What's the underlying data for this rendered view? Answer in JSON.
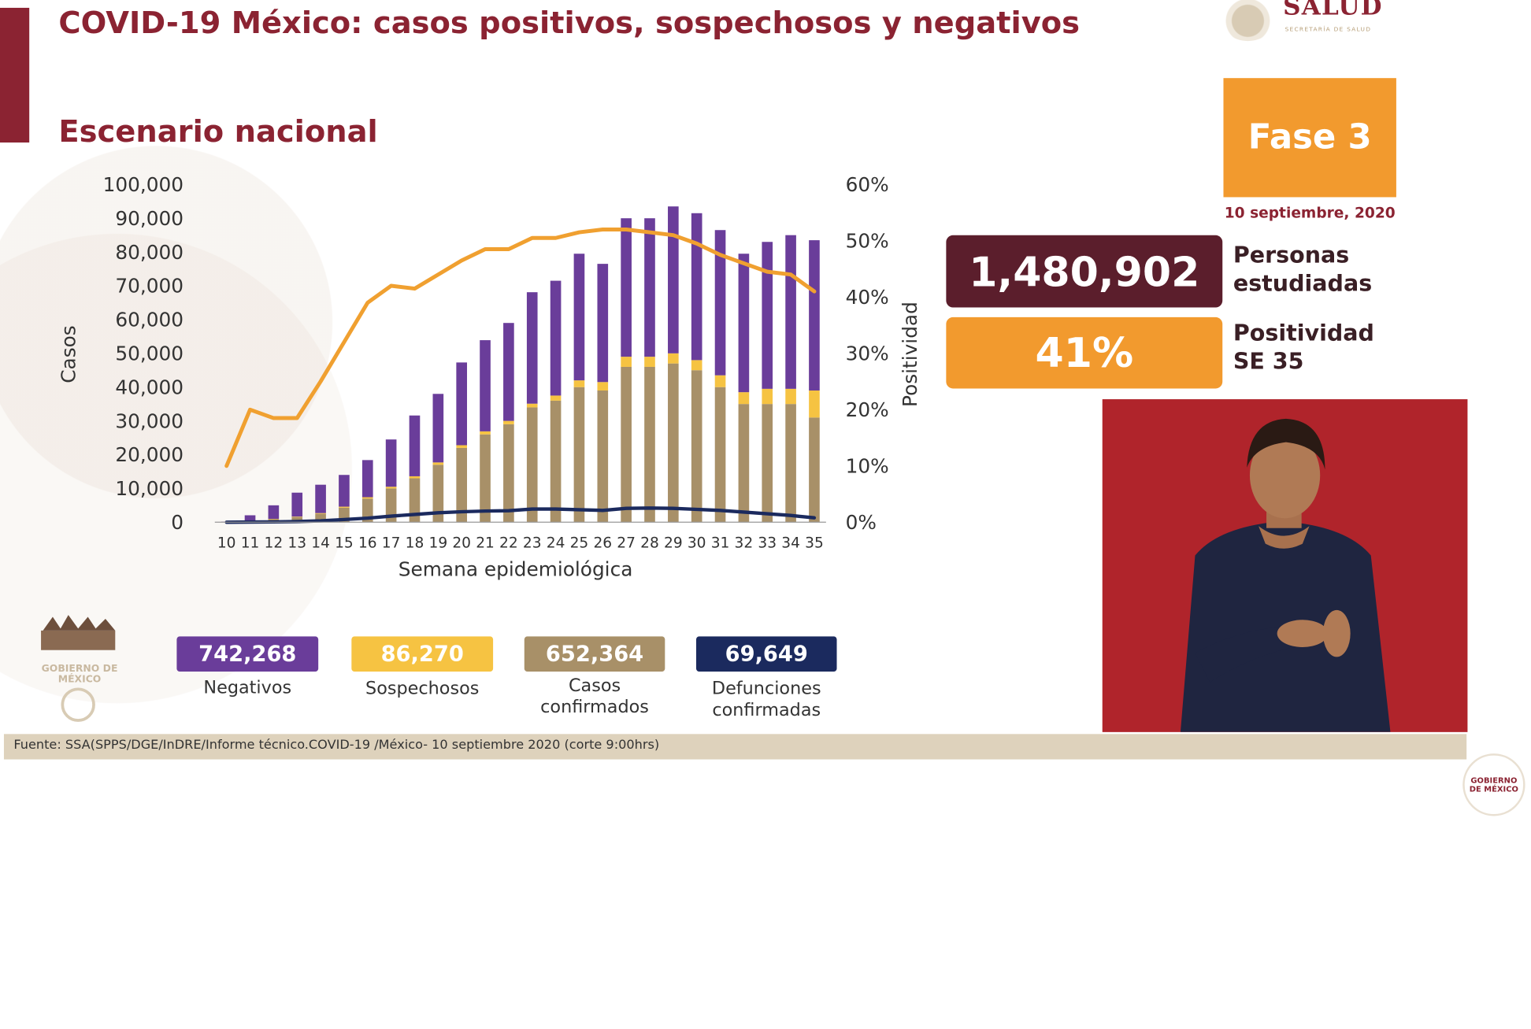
{
  "header": {
    "title": "COVID-19 México: casos positivos, sospechosos y negativos",
    "subtitle": "Escenario nacional",
    "logo_word": "SALUD",
    "logo_sub": "SECRETARÍA DE SALUD"
  },
  "phase": {
    "label": "Fase 3",
    "date": "10 septiembre, 2020"
  },
  "stats": [
    {
      "value": "1,480,902",
      "label_line1": "Personas",
      "label_line2": "estudiadas",
      "color": "#5b1e2c"
    },
    {
      "value": "41%",
      "label_line1": "Positividad",
      "label_line2": "SE 35",
      "color": "#f29a2e"
    }
  ],
  "totals": [
    {
      "value": "742,268",
      "label_line1": "Negativos",
      "label_line2": "",
      "color": "#6a3d9a"
    },
    {
      "value": "86,270",
      "label_line1": "Sospechosos",
      "label_line2": "",
      "color": "#f6c342"
    },
    {
      "value": "652,364",
      "label_line1": "Casos",
      "label_line2": "confirmados",
      "color": "#a89068"
    },
    {
      "value": "69,649",
      "label_line1": "Defunciones",
      "label_line2": "confirmadas",
      "color": "#1b2a5e"
    }
  ],
  "footer": {
    "source": "Fuente: SSA(SPPS/DGE/InDRE/Informe técnico.COVID-19 /México- 10 septiembre 2020 (corte 9:00hrs)"
  },
  "emblem_text": "GOBIERNO DE MÉXICO",
  "chart_data": {
    "type": "bar",
    "stacked": true,
    "xlabel": "Semana epidemiológica",
    "ylabel": "Casos",
    "y2label": "Positividad",
    "ylim": [
      0,
      100000
    ],
    "y2lim": [
      0,
      60
    ],
    "yticks": [
      "100,000",
      "90,000",
      "80,000",
      "70,000",
      "60,000",
      "50,000",
      "40,000",
      "30,000",
      "20,000",
      "10,000",
      "0"
    ],
    "y2ticks": [
      "60%",
      "50%",
      "40%",
      "30%",
      "20%",
      "10%",
      "0%"
    ],
    "categories": [
      "10",
      "11",
      "12",
      "13",
      "14",
      "15",
      "16",
      "17",
      "18",
      "19",
      "20",
      "21",
      "22",
      "23",
      "24",
      "25",
      "26",
      "27",
      "28",
      "29",
      "30",
      "31",
      "32",
      "33",
      "34",
      "35"
    ],
    "series": [
      {
        "name": "Casos confirmados",
        "kind": "bar",
        "color": "#a89068",
        "values": [
          50,
          300,
          900,
          1500,
          2500,
          4300,
          7000,
          10000,
          13000,
          17000,
          22000,
          26000,
          29000,
          34000,
          36000,
          40000,
          39000,
          46000,
          46000,
          47000,
          45000,
          40000,
          35000,
          35000,
          35000,
          31000
        ]
      },
      {
        "name": "Sospechosos",
        "kind": "bar",
        "color": "#f6c342",
        "values": [
          20,
          50,
          100,
          150,
          200,
          300,
          400,
          500,
          600,
          700,
          800,
          900,
          1000,
          1100,
          1500,
          2000,
          2500,
          3000,
          3000,
          3000,
          3000,
          3500,
          3500,
          4500,
          4500,
          8000
        ]
      },
      {
        "name": "Negativos",
        "kind": "bar",
        "color": "#6a3d9a",
        "values": [
          100,
          1700,
          4000,
          7100,
          8400,
          9400,
          11000,
          14000,
          18000,
          20300,
          24500,
          27000,
          29000,
          33000,
          34000,
          37500,
          35000,
          41000,
          41000,
          43500,
          43500,
          43000,
          41000,
          43500,
          45500,
          44500
        ]
      },
      {
        "name": "Defunciones confirmadas",
        "kind": "line",
        "color": "#1b2a5e",
        "values": [
          0,
          50,
          100,
          200,
          400,
          800,
          1200,
          1800,
          2300,
          2800,
          3100,
          3300,
          3400,
          3900,
          3900,
          3700,
          3500,
          4100,
          4200,
          4100,
          3800,
          3500,
          3000,
          2500,
          2000,
          1300
        ]
      },
      {
        "name": "Positividad",
        "kind": "line",
        "axis": "right",
        "color": "#f0a030",
        "values": [
          10,
          20,
          18.5,
          18.5,
          25,
          32,
          39,
          42,
          41.5,
          44,
          46.5,
          48.5,
          48.5,
          50.5,
          50.5,
          51.5,
          52,
          52,
          51.5,
          51,
          49.5,
          47.5,
          46,
          44.5,
          44,
          41
        ]
      }
    ]
  }
}
